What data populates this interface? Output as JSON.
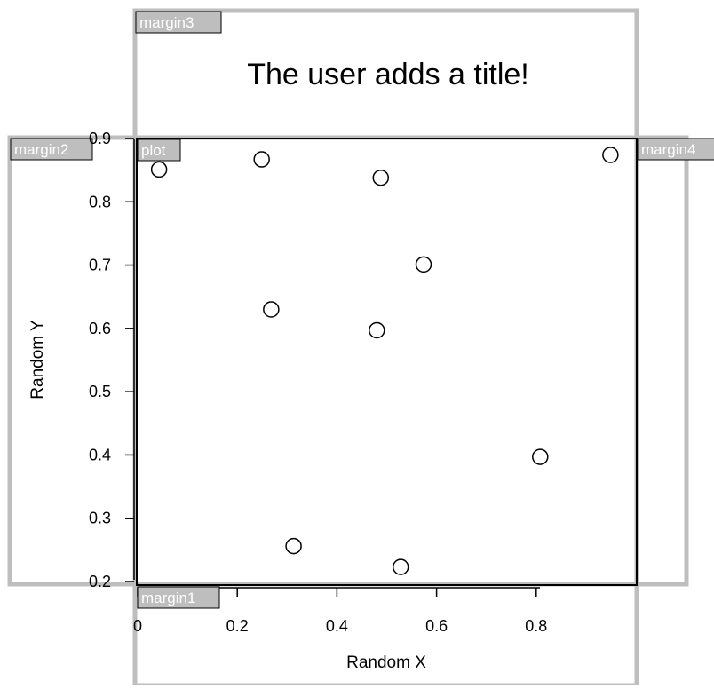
{
  "chart_data": {
    "type": "scatter",
    "title": "The user adds a title!",
    "xlabel": "Random X",
    "ylabel": "Random Y",
    "xlim": [
      0,
      1
    ],
    "ylim": [
      0.2,
      0.9
    ],
    "x_ticks": [
      0,
      0.2,
      0.4,
      0.6,
      0.8
    ],
    "x_tick_labels": [
      "0",
      "0.2",
      "0.4",
      "0.6",
      "0.8"
    ],
    "y_ticks": [
      0.2,
      0.3,
      0.4,
      0.5,
      0.6,
      0.7,
      0.8,
      0.9
    ],
    "y_tick_labels": [
      "0.2",
      "0.3",
      "0.4",
      "0.5",
      "0.6",
      "0.7",
      "0.8",
      "0.9"
    ],
    "grid": false,
    "points": [
      {
        "x": 0.043,
        "y": 0.851
      },
      {
        "x": 0.249,
        "y": 0.867
      },
      {
        "x": 0.268,
        "y": 0.63
      },
      {
        "x": 0.313,
        "y": 0.256
      },
      {
        "x": 0.48,
        "y": 0.597
      },
      {
        "x": 0.488,
        "y": 0.838
      },
      {
        "x": 0.528,
        "y": 0.223
      },
      {
        "x": 0.574,
        "y": 0.701
      },
      {
        "x": 0.808,
        "y": 0.397
      },
      {
        "x": 0.949,
        "y": 0.874
      }
    ],
    "point_style": "open-circle"
  },
  "regions": {
    "margin1": "margin1",
    "margin2": "margin2",
    "margin3": "margin3",
    "margin4": "margin4",
    "plot": "plot"
  },
  "colors": {
    "region_border": "#bebebe",
    "label_bg": "#bebebe",
    "label_text": "#ffffff",
    "axis": "#000000",
    "point_stroke": "#000000"
  }
}
